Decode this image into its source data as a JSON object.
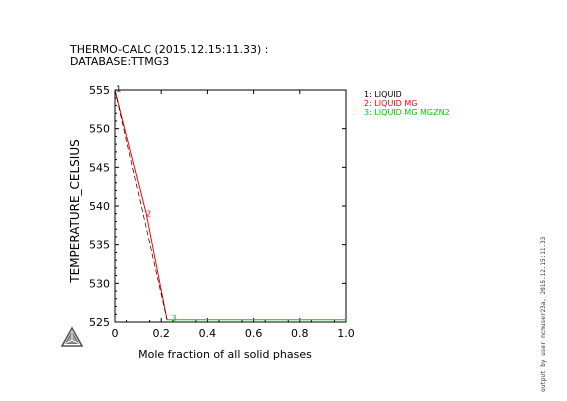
{
  "header": {
    "title_line1": "THERMO-CALC (2015.12.15:11.33) :",
    "title_line2": "DATABASE:TTMG3"
  },
  "footer": {
    "text": "output by user mcmuser23a, 2015.12.15:11.33"
  },
  "logo": {
    "name": "thermo-calc-logo-icon"
  },
  "chart_data": {
    "type": "line",
    "xlabel": "Mole fraction of all solid phases",
    "ylabel": "TEMPERATURE_CELSIUS",
    "xlim": [
      0,
      1.0
    ],
    "ylim": [
      525,
      555
    ],
    "x_ticks": [
      "0",
      "0.2",
      "0.4",
      "0.6",
      "0.8",
      "1.0"
    ],
    "y_ticks": [
      "525",
      "530",
      "535",
      "540",
      "545",
      "550",
      "555"
    ],
    "grid": false,
    "legend_position": "right-top",
    "series": [
      {
        "name": "1: LIQUID",
        "label": "1",
        "color": "#000000",
        "points": [
          [
            0,
            555
          ],
          [
            0,
            555
          ]
        ]
      },
      {
        "name": "2: LIQUID MG",
        "label": "2",
        "color": "#ff0000",
        "points": [
          [
            0,
            555
          ],
          [
            0.135,
            539
          ],
          [
            0.225,
            525.3
          ]
        ]
      },
      {
        "name": "3: LIQUID MG MGZN2",
        "label": "3",
        "color": "#00cc00",
        "points": [
          [
            0.225,
            525.3
          ],
          [
            1.0,
            525.3
          ]
        ]
      }
    ]
  }
}
